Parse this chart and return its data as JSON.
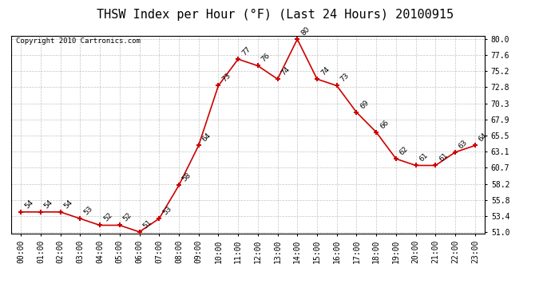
{
  "title": "THSW Index per Hour (°F) (Last 24 Hours) 20100915",
  "copyright": "Copyright 2010 Cartronics.com",
  "hours": [
    0,
    1,
    2,
    3,
    4,
    5,
    6,
    7,
    8,
    9,
    10,
    11,
    12,
    13,
    14,
    15,
    16,
    17,
    18,
    19,
    20,
    21,
    22,
    23
  ],
  "values": [
    54,
    54,
    54,
    53,
    52,
    52,
    51,
    53,
    58,
    64,
    73,
    77,
    76,
    74,
    80,
    74,
    73,
    69,
    66,
    62,
    61,
    61,
    63,
    64
  ],
  "x_labels": [
    "00:00",
    "01:00",
    "02:00",
    "03:00",
    "04:00",
    "05:00",
    "06:00",
    "07:00",
    "08:00",
    "09:00",
    "10:00",
    "11:00",
    "12:00",
    "13:00",
    "14:00",
    "15:00",
    "16:00",
    "17:00",
    "18:00",
    "19:00",
    "20:00",
    "21:00",
    "22:00",
    "23:00"
  ],
  "yticks": [
    51.0,
    53.4,
    55.8,
    58.2,
    60.7,
    63.1,
    65.5,
    67.9,
    70.3,
    72.8,
    75.2,
    77.6,
    80.0
  ],
  "ymin": 51.0,
  "ymax": 80.0,
  "line_color": "#cc0000",
  "marker_color": "#cc0000",
  "grid_color": "#aaaaaa",
  "bg_color": "#ffffff",
  "title_fontsize": 11,
  "annotation_fontsize": 6.5,
  "copyright_fontsize": 6.5,
  "tick_fontsize": 7.0
}
